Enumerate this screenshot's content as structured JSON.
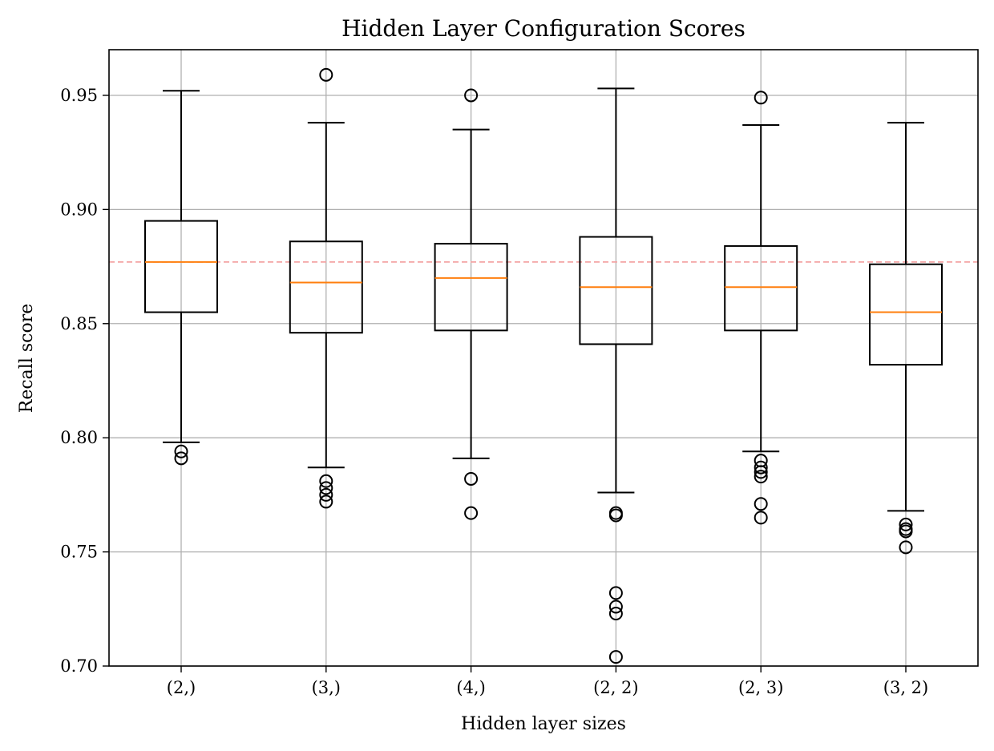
{
  "chart_data": {
    "type": "box",
    "title": "Hidden Layer Configuration Scores",
    "xlabel": "Hidden layer sizes",
    "ylabel": "Recall score",
    "ylim": [
      0.7,
      0.97
    ],
    "yticks": [
      "0.70",
      "0.75",
      "0.80",
      "0.85",
      "0.90",
      "0.95"
    ],
    "grid": true,
    "reference_line": {
      "y": 0.877,
      "style": "dashed",
      "color": "#f4a4a4"
    },
    "colors": {
      "box": "#000000",
      "median": "#ff7f0e",
      "grid": "#b0b0b0"
    },
    "categories": [
      "(2,)",
      "(3,)",
      "(4,)",
      "(2, 2)",
      "(2, 3)",
      "(3, 2)"
    ],
    "boxes": [
      {
        "whislo": 0.798,
        "q1": 0.855,
        "med": 0.877,
        "q3": 0.895,
        "whishi": 0.952,
        "fliers": [
          0.794,
          0.791
        ]
      },
      {
        "whislo": 0.787,
        "q1": 0.846,
        "med": 0.868,
        "q3": 0.886,
        "whishi": 0.938,
        "fliers": [
          0.959,
          0.781,
          0.778,
          0.775,
          0.772
        ]
      },
      {
        "whislo": 0.791,
        "q1": 0.847,
        "med": 0.87,
        "q3": 0.885,
        "whishi": 0.935,
        "fliers": [
          0.95,
          0.782,
          0.767
        ]
      },
      {
        "whislo": 0.776,
        "q1": 0.841,
        "med": 0.866,
        "q3": 0.888,
        "whishi": 0.953,
        "fliers": [
          0.767,
          0.766,
          0.732,
          0.726,
          0.723,
          0.704
        ]
      },
      {
        "whislo": 0.794,
        "q1": 0.847,
        "med": 0.866,
        "q3": 0.884,
        "whishi": 0.937,
        "fliers": [
          0.949,
          0.79,
          0.787,
          0.785,
          0.783,
          0.771,
          0.765
        ]
      },
      {
        "whislo": 0.768,
        "q1": 0.832,
        "med": 0.855,
        "q3": 0.876,
        "whishi": 0.938,
        "fliers": [
          0.762,
          0.76,
          0.759,
          0.752
        ]
      }
    ]
  }
}
